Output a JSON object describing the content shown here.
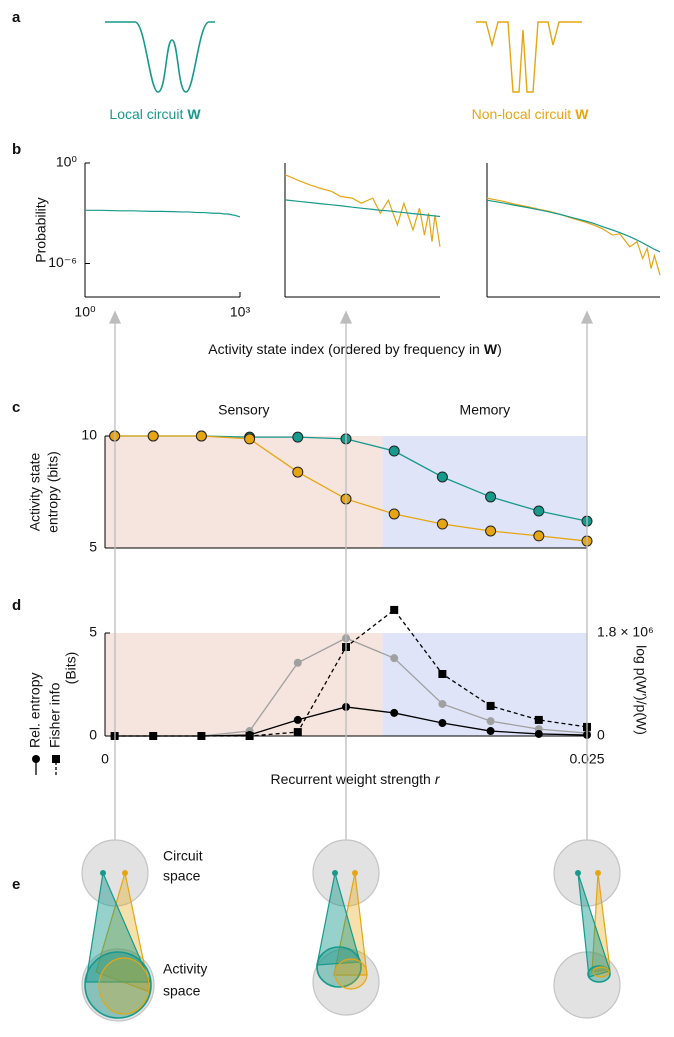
{
  "panel_labels": [
    "a",
    "b",
    "c",
    "d",
    "e"
  ],
  "panel_a": {
    "local": {
      "text": "Local circuit",
      "symbol": "W",
      "color": "#17998b"
    },
    "nonlocal": {
      "text": "Non-local circuit",
      "symbol": "W",
      "color": "#e5a612"
    }
  },
  "panel_e": {
    "circuit_space": [
      "Circuit",
      "space"
    ],
    "activity_space": [
      "Activity",
      "space"
    ]
  },
  "chart_data": [
    {
      "type": "line",
      "xscale": "log",
      "yscale": "log",
      "ylabel": "Probability",
      "xlabel": [
        "Activity state index (ordered by frequency in",
        "W",
        ")"
      ],
      "x": [
        1,
        2,
        3,
        5,
        8,
        12,
        20,
        30,
        50,
        70,
        100,
        150,
        200,
        300,
        400,
        500,
        600,
        700,
        800,
        1000
      ],
      "xlim": [
        1,
        1000
      ],
      "ylim": [
        1e-08,
        1
      ],
      "xticks": [
        {
          "value": 1,
          "label": "10⁰"
        },
        {
          "value": 1000,
          "label": "10³"
        }
      ],
      "yticks": [
        {
          "value": 1,
          "label": "10⁰"
        },
        {
          "value": 1e-06,
          "label": "10⁻⁶"
        }
      ],
      "series": [
        {
          "color": "#17998b",
          "values": [
            0.0015,
            0.0015,
            0.00145,
            0.0014,
            0.0014,
            0.00135,
            0.0013,
            0.0013,
            0.00125,
            0.0012,
            0.0012,
            0.0011,
            0.0011,
            0.001,
            0.001,
            0.0009,
            0.0009,
            0.0008,
            0.00075,
            0.0006
          ]
        }
      ]
    },
    {
      "type": "line",
      "xscale": "log",
      "yscale": "log",
      "x": [
        1,
        2,
        3,
        5,
        8,
        12,
        20,
        30,
        50,
        70,
        100,
        150,
        200,
        300,
        400,
        500,
        600,
        700,
        800,
        1000
      ],
      "xlim": [
        1,
        1000
      ],
      "ylim": [
        1e-08,
        1
      ],
      "series": [
        {
          "color": "#e5a612",
          "values": [
            0.2,
            0.08,
            0.05,
            0.03,
            0.02,
            0.01,
            0.008,
            0.004,
            0.008,
            0.001,
            0.006,
            0.0002,
            0.004,
            0.0001,
            0.002,
            5e-05,
            0.001,
            2e-05,
            0.0008,
            1e-05
          ]
        },
        {
          "color": "#17998b",
          "values": [
            0.0063,
            0.005,
            0.0044,
            0.0037,
            0.0032,
            0.0028,
            0.0023,
            0.002,
            0.0017,
            0.0015,
            0.0014,
            0.0012,
            0.0011,
            0.00095,
            0.00087,
            0.00081,
            0.00076,
            0.00072,
            0.00069,
            0.00064
          ]
        }
      ]
    },
    {
      "type": "line",
      "xscale": "log",
      "yscale": "log",
      "x": [
        1,
        2,
        3,
        5,
        8,
        12,
        20,
        30,
        50,
        70,
        100,
        150,
        200,
        300,
        400,
        500,
        600,
        700,
        800,
        1000
      ],
      "xlim": [
        1,
        1000
      ],
      "ylim": [
        1e-08,
        1
      ],
      "series": [
        {
          "color": "#e5a612",
          "values": [
            0.008,
            0.005,
            0.0035,
            0.0025,
            0.0017,
            0.0013,
            0.0008,
            0.0005,
            0.0003,
            0.0002,
            0.00012,
            5e-05,
            6e-05,
            1e-05,
            2e-05,
            2e-06,
            8e-06,
            5e-07,
            3e-06,
            2e-07
          ]
        },
        {
          "color": "#17998b",
          "values": [
            0.006,
            0.004,
            0.003,
            0.0022,
            0.0016,
            0.0012,
            0.0008,
            0.00055,
            0.00035,
            0.00025,
            0.00016,
            0.0001,
            7e-05,
            4e-05,
            2.5e-05,
            1.7e-05,
            1.2e-05,
            9e-06,
            7e-06,
            5e-06
          ]
        }
      ]
    },
    {
      "type": "line",
      "ylabel": [
        "Activity state",
        "entropy (bits)"
      ],
      "x": [
        0.0005,
        0.0025,
        0.005,
        0.0075,
        0.01,
        0.0125,
        0.015,
        0.0175,
        0.02,
        0.0225,
        0.025
      ],
      "xlim": [
        0,
        0.025
      ],
      "ylim": [
        5,
        10
      ],
      "yticks": [
        5,
        10
      ],
      "marker_edge": "#222222",
      "regions": [
        {
          "name": "Sensory",
          "range": [
            0,
            0.0144
          ],
          "color": "#f6e4df",
          "text_color": "#c8372d"
        },
        {
          "name": "Memory",
          "range": [
            0.0144,
            0.025
          ],
          "color": "#dfe4f8",
          "text_color": "#2a78c8"
        }
      ],
      "series": [
        {
          "color": "#17998b",
          "marker": "circle",
          "values": [
            10,
            10,
            10,
            9.95,
            9.95,
            9.87,
            9.33,
            8.17,
            7.28,
            6.65,
            6.2
          ]
        },
        {
          "color": "#e5a612",
          "marker": "circle",
          "values": [
            10,
            10,
            10,
            9.87,
            8.39,
            7.19,
            6.52,
            6.07,
            5.76,
            5.54,
            5.31
          ]
        }
      ]
    },
    {
      "type": "line",
      "ylabel": "(Bits)",
      "y2label": "log p(W′)/p(W)",
      "xlabel": {
        "text": "Recurrent weight strength",
        "symbol": "r"
      },
      "x": [
        0.0005,
        0.0025,
        0.005,
        0.0075,
        0.01,
        0.0125,
        0.015,
        0.0175,
        0.02,
        0.0225,
        0.025
      ],
      "xlim": [
        0,
        0.025
      ],
      "ylim": [
        0,
        5
      ],
      "yticks": [
        0,
        5
      ],
      "xticks": [
        0,
        0.025
      ],
      "y2lim": [
        0,
        1800000
      ],
      "y2ticks": [
        0,
        {
          "value": 1800000,
          "label": "1.8 × 10⁶"
        }
      ],
      "y2color": "#a0a0a0",
      "regions": [
        {
          "range": [
            0,
            0.0144
          ],
          "color": "#f6e4df"
        },
        {
          "range": [
            0.0144,
            0.025
          ],
          "color": "#dfe4f8"
        }
      ],
      "series": [
        {
          "axis": "y2",
          "color": "#a0a0a0",
          "marker": "circle",
          "values": [
            0,
            0,
            0,
            87000,
            1280000,
            1710000,
            1360000,
            560000,
            260000,
            120000,
            50000
          ]
        },
        {
          "name": "Fisher info",
          "color": "#000000",
          "marker": "square",
          "dash": true,
          "values": [
            0,
            0,
            0,
            0,
            0.19,
            4.32,
            6.12,
            3.01,
            1.46,
            0.78,
            0.44
          ]
        },
        {
          "name": "Rel. entropy",
          "color": "#000000",
          "marker": "circle",
          "values": [
            0,
            0,
            0,
            0.05,
            0.78,
            1.41,
            1.12,
            0.63,
            0.24,
            0.1,
            0.05
          ]
        }
      ]
    }
  ]
}
